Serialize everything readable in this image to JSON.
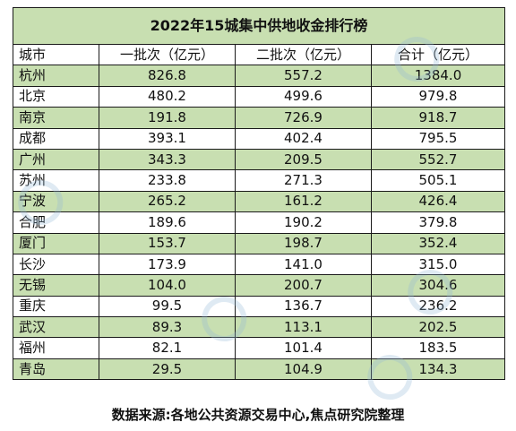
{
  "title": "2022年15城集中供地收金排行榜",
  "columns": [
    "城市",
    "一批次（亿元）",
    "二批次（亿元）",
    "合计（亿元）"
  ],
  "rows": [
    {
      "city": "杭州",
      "batch1": "826.8",
      "batch2": "557.2",
      "total": "1384.0"
    },
    {
      "city": "北京",
      "batch1": "480.2",
      "batch2": "499.6",
      "total": "979.8"
    },
    {
      "city": "南京",
      "batch1": "191.8",
      "batch2": "726.9",
      "total": "918.7"
    },
    {
      "city": "成都",
      "batch1": "393.1",
      "batch2": "402.4",
      "total": "795.5"
    },
    {
      "city": "广州",
      "batch1": "343.3",
      "batch2": "209.5",
      "total": "552.7"
    },
    {
      "city": "苏州",
      "batch1": "233.8",
      "batch2": "271.3",
      "total": "505.1"
    },
    {
      "city": "宁波",
      "batch1": "265.2",
      "batch2": "161.2",
      "total": "426.4"
    },
    {
      "city": "合肥",
      "batch1": "189.6",
      "batch2": "190.2",
      "total": "379.8"
    },
    {
      "city": "厦门",
      "batch1": "153.7",
      "batch2": "198.7",
      "total": "352.4"
    },
    {
      "city": "长沙",
      "batch1": "173.9",
      "batch2": "141.0",
      "total": "315.0"
    },
    {
      "city": "无锡",
      "batch1": "104.0",
      "batch2": "200.7",
      "total": "304.6"
    },
    {
      "city": "重庆",
      "batch1": "99.5",
      "batch2": "136.7",
      "total": "236.2"
    },
    {
      "city": "武汉",
      "batch1": "89.3",
      "batch2": "113.1",
      "total": "202.5"
    },
    {
      "city": "福州",
      "batch1": "82.1",
      "batch2": "101.4",
      "total": "183.5"
    },
    {
      "city": "青岛",
      "batch1": "29.5",
      "batch2": "104.9",
      "total": "134.3"
    }
  ],
  "source": "数据来源:各地公共资源交易中心,焦点研究院整理",
  "colors": {
    "row_green": "#c8dfb1",
    "row_white": "#ffffff",
    "border": "#1a1a1a"
  }
}
